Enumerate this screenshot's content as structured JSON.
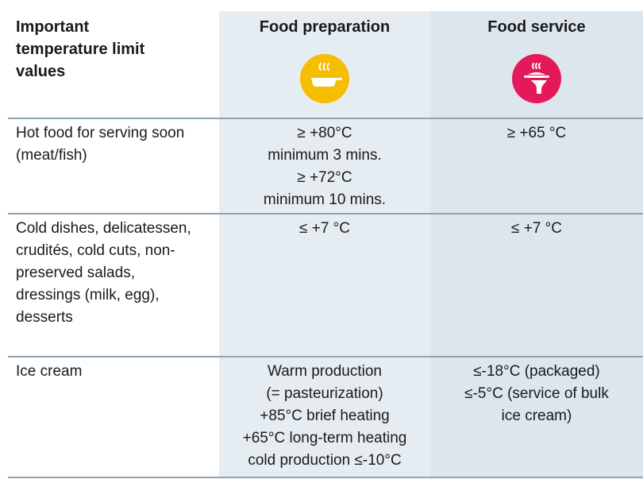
{
  "header": {
    "title": "Important temperature limit values",
    "col_prep": "Food preparation",
    "col_service": "Food service",
    "icons": {
      "prep": "pan-steam-icon",
      "service": "serving-tray-icon"
    },
    "colors": {
      "prep": "#f6be00",
      "service": "#e4195a",
      "col_prep_bg": "#e6edf2",
      "col_service_bg": "#dde6ed"
    }
  },
  "rows": [
    {
      "label": "Hot food for serving soon (meat/fish)",
      "prep": [
        "≥ +80°C",
        "minimum 3 mins.",
        "≥ +72°C",
        "minimum 10 mins."
      ],
      "service": [
        "≥ +65 °C"
      ]
    },
    {
      "label": "Cold dishes, delicatessen, crudités, cold cuts, non-preserved salads, dressings (milk, egg), desserts",
      "prep": [
        "≤ +7 °C"
      ],
      "service": [
        "≤ +7 °C"
      ]
    },
    {
      "label": "Ice cream",
      "prep": [
        "Warm production",
        "(= pasteurization)",
        "+85°C brief heating",
        "+65°C long-term heating",
        "cold production ≤-10°C"
      ],
      "service": [
        "≤-18°C (packaged)",
        "≤-5°C (service of bulk",
        "ice cream)"
      ]
    }
  ]
}
